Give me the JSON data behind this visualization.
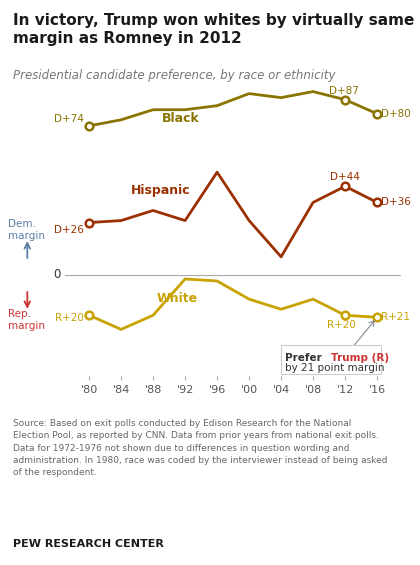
{
  "title": "In victory, Trump won whites by virtually same\nmargin as Romney in 2012",
  "subtitle": "Presidential candidate preference, by race or ethnicity",
  "years": [
    1980,
    1984,
    1988,
    1992,
    1996,
    2000,
    2004,
    2008,
    2012,
    2016
  ],
  "black": [
    74,
    77,
    82,
    82,
    84,
    90,
    88,
    91,
    87,
    80
  ],
  "hispanic": [
    26,
    27,
    32,
    27,
    51,
    27,
    9,
    36,
    44,
    36
  ],
  "white": [
    -20,
    -27,
    -20,
    -2,
    -3,
    -12,
    -17,
    -12,
    -20,
    -21
  ],
  "black_color": "#8B7300",
  "hispanic_color": "#9B3000",
  "white_color": "#C8A200",
  "dem_color": "#5B7FA6",
  "rep_color": "#CC3333",
  "source_text": "Source: Based on exit polls conducted by Edison Research for the National\nElection Pool, as reported by CNN. Data from prior years from national exit polls.\nData for 1972-1976 not shown due to differences in question wording and\nadministration. In 1980, race was coded by the interviewer instead of being asked\nof the respondent.",
  "footer": "PEW RESEARCH CENTER",
  "ylim": [
    -50,
    100
  ],
  "background_color": "#FFFFFF"
}
